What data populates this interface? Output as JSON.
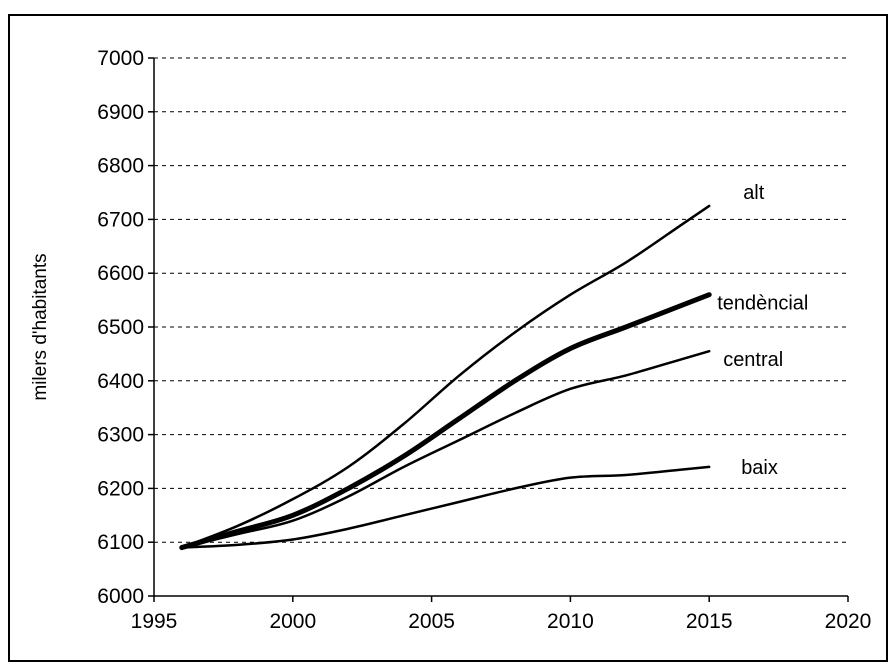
{
  "chart_data": {
    "type": "line",
    "title": "",
    "xlabel": "",
    "ylabel": "milers d'habitants",
    "xlim": [
      1995,
      2020
    ],
    "ylim": [
      6000,
      7000
    ],
    "x_ticks": [
      1995,
      2000,
      2005,
      2010,
      2015,
      2020
    ],
    "y_ticks": [
      6000,
      6100,
      6200,
      6300,
      6400,
      6500,
      6600,
      6700,
      6800,
      6900,
      7000
    ],
    "grid": "horizontal dashed",
    "legend": "labels at line ends",
    "series": [
      {
        "name": "alt",
        "line_weight": "thin",
        "points": [
          [
            1996,
            6090
          ],
          [
            1998,
            6130
          ],
          [
            2000,
            6180
          ],
          [
            2002,
            6240
          ],
          [
            2004,
            6320
          ],
          [
            2006,
            6410
          ],
          [
            2008,
            6490
          ],
          [
            2010,
            6560
          ],
          [
            2012,
            6620
          ],
          [
            2014,
            6690
          ],
          [
            2015,
            6725
          ]
        ]
      },
      {
        "name": "tendèncial",
        "line_weight": "thick",
        "points": [
          [
            1996,
            6090
          ],
          [
            1998,
            6120
          ],
          [
            2000,
            6150
          ],
          [
            2002,
            6200
          ],
          [
            2004,
            6260
          ],
          [
            2006,
            6330
          ],
          [
            2008,
            6400
          ],
          [
            2010,
            6460
          ],
          [
            2012,
            6500
          ],
          [
            2014,
            6540
          ],
          [
            2015,
            6560
          ]
        ]
      },
      {
        "name": "central",
        "line_weight": "thin",
        "points": [
          [
            1996,
            6090
          ],
          [
            1998,
            6115
          ],
          [
            2000,
            6140
          ],
          [
            2002,
            6185
          ],
          [
            2004,
            6240
          ],
          [
            2006,
            6290
          ],
          [
            2008,
            6340
          ],
          [
            2010,
            6385
          ],
          [
            2012,
            6410
          ],
          [
            2014,
            6440
          ],
          [
            2015,
            6455
          ]
        ]
      },
      {
        "name": "baix",
        "line_weight": "thin",
        "points": [
          [
            1996,
            6090
          ],
          [
            1998,
            6095
          ],
          [
            2000,
            6105
          ],
          [
            2002,
            6125
          ],
          [
            2004,
            6150
          ],
          [
            2006,
            6175
          ],
          [
            2008,
            6200
          ],
          [
            2010,
            6220
          ],
          [
            2012,
            6225
          ],
          [
            2014,
            6235
          ],
          [
            2015,
            6240
          ]
        ]
      }
    ]
  }
}
